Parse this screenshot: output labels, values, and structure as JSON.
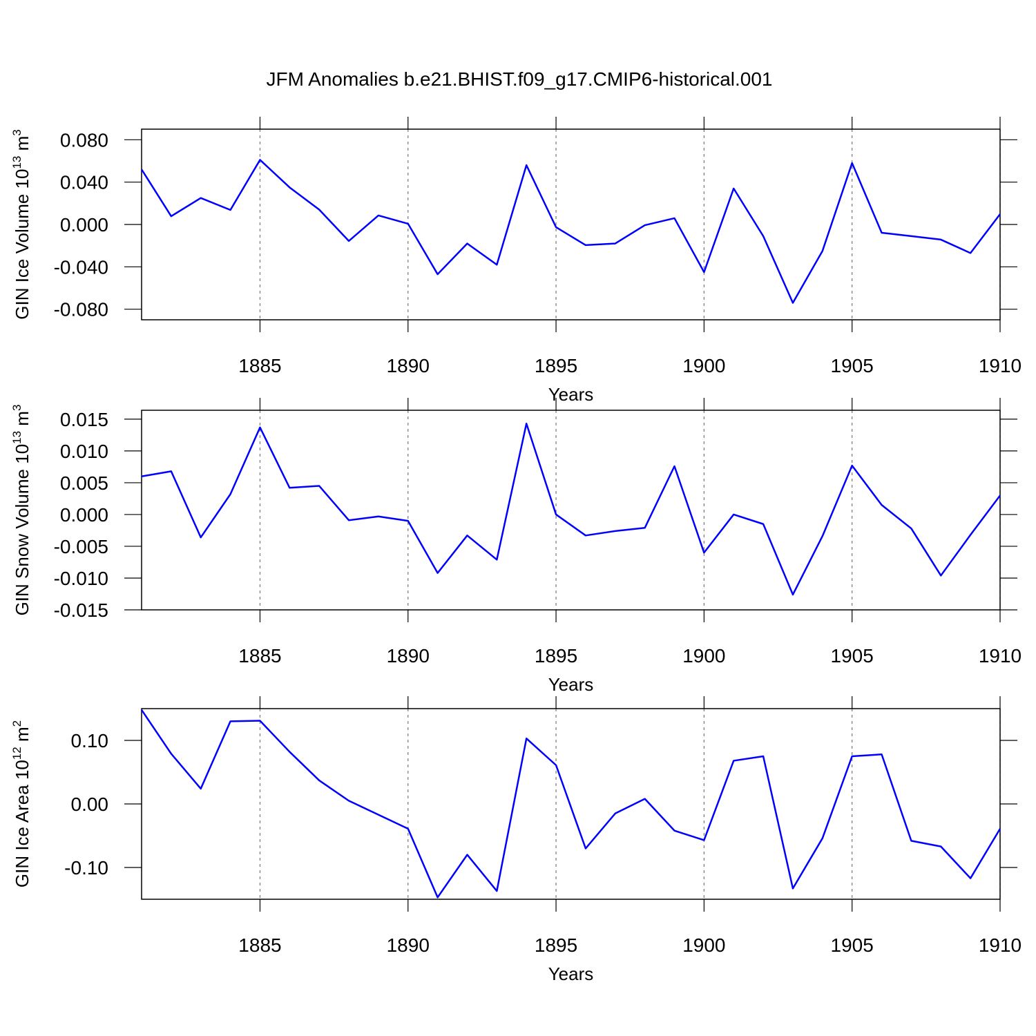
{
  "title": "JFM Anomalies b.e21.BHIST.f09_g17.CMIP6-historical.001",
  "chart_data": [
    {
      "type": "line",
      "xlabel": "Years",
      "ylabel": {
        "text": "GIN Ice Volume 10",
        "exponent": "13",
        "unit": " m",
        "unit_exponent": "3"
      },
      "x": [
        1881,
        1882,
        1883,
        1884,
        1885,
        1886,
        1887,
        1888,
        1889,
        1890,
        1891,
        1892,
        1893,
        1894,
        1895,
        1896,
        1897,
        1898,
        1899,
        1900,
        1901,
        1902,
        1903,
        1904,
        1905,
        1906,
        1907,
        1908,
        1909,
        1910
      ],
      "series": [
        {
          "color": "#0000ff",
          "values": [
            0.052,
            0.0078,
            0.025,
            0.0137,
            0.061,
            0.035,
            0.014,
            -0.0156,
            0.0085,
            0.0007,
            -0.047,
            -0.018,
            -0.038,
            0.056,
            -0.0026,
            -0.0195,
            -0.018,
            -0.0007,
            0.0059,
            -0.045,
            0.034,
            -0.011,
            -0.074,
            -0.025,
            0.058,
            -0.0078,
            -0.011,
            -0.0143,
            -0.027,
            0.0098
          ]
        }
      ],
      "xlim": [
        1881,
        1910
      ],
      "xticks": [
        1885,
        1890,
        1895,
        1900,
        1905,
        1910
      ],
      "ylim": [
        -0.09,
        0.09
      ],
      "yticks": [
        {
          "value": -0.08,
          "label": "-0.080"
        },
        {
          "value": -0.04,
          "label": "-0.040"
        },
        {
          "value": 0,
          "label": "0.000"
        },
        {
          "value": 0.04,
          "label": "0.040"
        },
        {
          "value": 0.08,
          "label": "0.080"
        }
      ],
      "grid": true
    },
    {
      "type": "line",
      "xlabel": "Years",
      "ylabel": {
        "text": "GIN Snow Volume 10",
        "exponent": "13",
        "unit": " m",
        "unit_exponent": "3"
      },
      "x": [
        1881,
        1882,
        1883,
        1884,
        1885,
        1886,
        1887,
        1888,
        1889,
        1890,
        1891,
        1892,
        1893,
        1894,
        1895,
        1896,
        1897,
        1898,
        1899,
        1900,
        1901,
        1902,
        1903,
        1904,
        1905,
        1906,
        1907,
        1908,
        1909,
        1910
      ],
      "series": [
        {
          "color": "#0000ff",
          "values": [
            0.006,
            0.0068,
            -0.0036,
            0.0032,
            0.0137,
            0.0042,
            0.0045,
            -0.0009,
            -0.0003,
            -0.001,
            -0.0092,
            -0.0033,
            -0.0071,
            0.0143,
            0.0,
            -0.0033,
            -0.0026,
            -0.0021,
            0.0076,
            -0.006,
            0.0,
            -0.0015,
            -0.0126,
            -0.0034,
            0.0077,
            0.0015,
            -0.0022,
            -0.0096,
            -0.0032,
            0.003
          ]
        }
      ],
      "xlim": [
        1881,
        1910
      ],
      "xticks": [
        1885,
        1890,
        1895,
        1900,
        1905,
        1910
      ],
      "ylim": [
        -0.015,
        0.0164
      ],
      "yticks": [
        {
          "value": -0.015,
          "label": "-0.015"
        },
        {
          "value": -0.01,
          "label": "-0.010"
        },
        {
          "value": -0.005,
          "label": "-0.005"
        },
        {
          "value": 0,
          "label": "0.000"
        },
        {
          "value": 0.005,
          "label": "0.005"
        },
        {
          "value": 0.01,
          "label": "0.010"
        },
        {
          "value": 0.015,
          "label": "0.015"
        }
      ],
      "grid": true
    },
    {
      "type": "line",
      "xlabel": "Years",
      "ylabel": {
        "text": "GIN Ice Area 10",
        "exponent": "12",
        "unit": " m",
        "unit_exponent": "2"
      },
      "x": [
        1881,
        1882,
        1883,
        1884,
        1885,
        1886,
        1887,
        1888,
        1889,
        1890,
        1891,
        1892,
        1893,
        1894,
        1895,
        1896,
        1897,
        1898,
        1899,
        1900,
        1901,
        1902,
        1903,
        1904,
        1905,
        1906,
        1907,
        1908,
        1909,
        1910
      ],
      "series": [
        {
          "color": "#0000ff",
          "values": [
            0.148,
            0.079,
            0.024,
            0.13,
            0.131,
            0.082,
            0.037,
            0.005,
            -0.017,
            -0.039,
            -0.147,
            -0.08,
            -0.137,
            0.103,
            0.061,
            -0.07,
            -0.015,
            0.008,
            -0.042,
            -0.057,
            0.068,
            0.075,
            -0.133,
            -0.054,
            0.075,
            0.078,
            -0.058,
            -0.067,
            -0.117,
            -0.039
          ]
        }
      ],
      "xlim": [
        1881,
        1910
      ],
      "xticks": [
        1885,
        1890,
        1895,
        1900,
        1905,
        1910
      ],
      "ylim": [
        -0.15,
        0.15
      ],
      "yticks": [
        {
          "value": -0.1,
          "label": "-0.10"
        },
        {
          "value": 0,
          "label": "0.00"
        },
        {
          "value": 0.1,
          "label": "0.10"
        }
      ],
      "grid": true
    }
  ]
}
